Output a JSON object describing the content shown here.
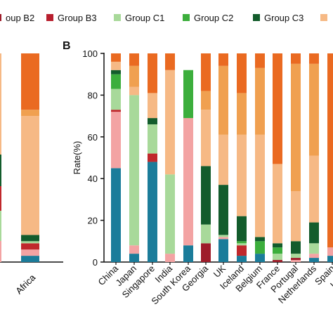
{
  "panel_label": "B",
  "legend": {
    "items": [
      {
        "label": "oup B2",
        "color": "#9e1c2a"
      },
      {
        "label": "Group B3",
        "color": "#b81f2e"
      },
      {
        "label": "Group C1",
        "color": "#a8d99a"
      },
      {
        "label": "Group C2",
        "color": "#3cae3c"
      },
      {
        "label": "Group C3",
        "color": "#135c2c"
      },
      {
        "label": "",
        "color": "#f6b985"
      }
    ]
  },
  "chart_data": [
    {
      "type": "bar",
      "stacked": true,
      "panel": "A (cropped)",
      "categories": [
        "Africa"
      ],
      "series": [
        {
          "color": "#1b7c9a",
          "values": [
            3
          ]
        },
        {
          "color": "#f3a3a3",
          "values": [
            3
          ]
        },
        {
          "color": "#c0282c",
          "values": [
            3
          ]
        },
        {
          "color": "#a8d99a",
          "values": [
            1
          ]
        },
        {
          "color": "#135c2c",
          "values": [
            3
          ]
        },
        {
          "color": "#f6b985",
          "values": [
            57
          ]
        },
        {
          "color": "#f0a050",
          "values": [
            3
          ]
        },
        {
          "color": "#ea6a21",
          "values": [
            27
          ]
        }
      ],
      "ylim": [
        0,
        100
      ]
    },
    {
      "type": "bar",
      "stacked": true,
      "panel": "B",
      "ylabel": "Rate(%)",
      "ylim": [
        0,
        100
      ],
      "yticks": [
        "0",
        "20",
        "40",
        "60",
        "80",
        "100"
      ],
      "categories": [
        "China",
        "Japan",
        "Singapore",
        "India",
        "South Korea",
        "Georgia",
        "UK",
        "Iceland",
        "Belgium",
        "France",
        "Portugal",
        "Netherlands",
        "Spain",
        "Luxem"
      ],
      "series": [
        {
          "color": "#1b7c9a",
          "values": [
            45,
            4,
            48,
            0,
            8,
            0,
            11,
            3,
            4,
            0,
            0,
            2,
            3,
            0
          ]
        },
        {
          "color": "#f3a3a3",
          "values": [
            27,
            4,
            0,
            4,
            61,
            0,
            1,
            0,
            0,
            0,
            1,
            2,
            4,
            0
          ]
        },
        {
          "color": "#9e1c2a",
          "values": [
            0,
            0,
            0,
            0,
            0,
            9,
            0,
            0,
            0,
            1,
            1,
            0,
            0,
            53
          ]
        },
        {
          "color": "#c0282c",
          "values": [
            1,
            0,
            4,
            0,
            0,
            0,
            0,
            5,
            0,
            0,
            0,
            0,
            0,
            0
          ]
        },
        {
          "color": "#a8d99a",
          "values": [
            10,
            72,
            14,
            38,
            0,
            9,
            1,
            1,
            0,
            3,
            2,
            5,
            0,
            0
          ]
        },
        {
          "color": "#3cae3c",
          "values": [
            7,
            0,
            0,
            0,
            23,
            0,
            0,
            1,
            6,
            3,
            0,
            0,
            0,
            0
          ]
        },
        {
          "color": "#135c2c",
          "values": [
            2,
            0,
            3,
            0,
            0,
            28,
            24,
            12,
            2,
            2,
            6,
            10,
            0,
            7
          ]
        },
        {
          "color": "#f6b985",
          "values": [
            4,
            4,
            12,
            50,
            0,
            27,
            24,
            39,
            49,
            38,
            24,
            32,
            0,
            0
          ]
        },
        {
          "color": "#f0a050",
          "values": [
            0,
            10,
            0,
            0,
            0,
            9,
            33,
            20,
            32,
            0,
            61,
            44,
            0,
            0
          ]
        },
        {
          "color": "#ea6a21",
          "values": [
            4,
            6,
            19,
            8,
            0,
            18,
            6,
            19,
            7,
            53,
            5,
            5,
            93,
            40
          ]
        }
      ]
    }
  ]
}
